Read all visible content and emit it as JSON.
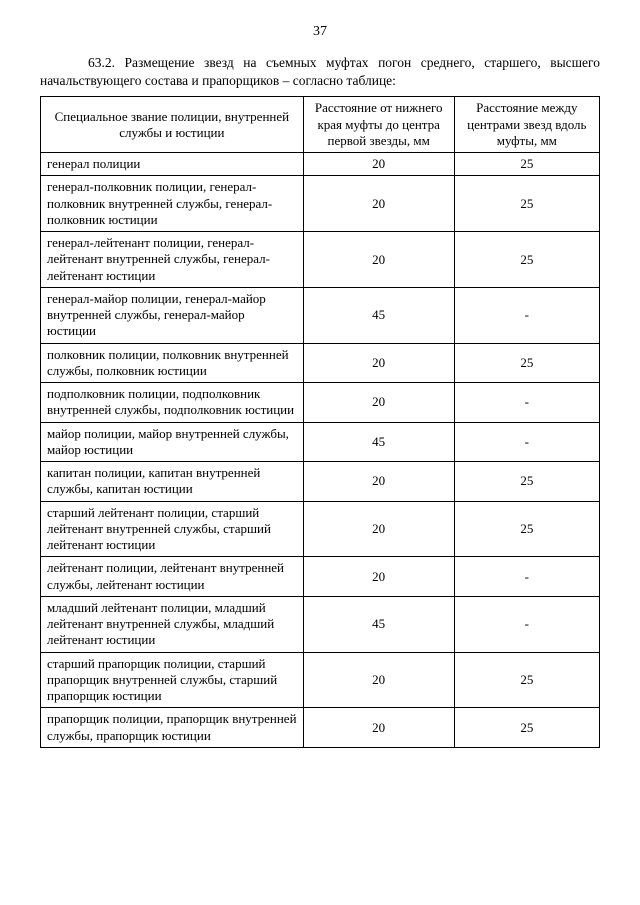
{
  "page_number": "37",
  "intro_text": "63.2. Размещение звезд на съемных муфтах погон среднего, старшего, высшего начальствующего состава и прапорщиков – согласно таблице:",
  "table": {
    "columns": [
      "Специальное звание полиции, внутренней службы и юстиции",
      "Расстояние от нижнего края муфты до центра первой звезды, мм",
      "Расстояние между центрами звезд вдоль муфты, мм"
    ],
    "rows": [
      [
        "генерал полиции",
        "20",
        "25"
      ],
      [
        "генерал-полковник полиции, генерал-полковник внутренней службы, генерал-полковник юстиции",
        "20",
        "25"
      ],
      [
        "генерал-лейтенант полиции, генерал-лейтенант внутренней службы, генерал-лейтенант юстиции",
        "20",
        "25"
      ],
      [
        "генерал-майор полиции, генерал-майор внутренней службы, генерал-майор юстиции",
        "45",
        "-"
      ],
      [
        "полковник полиции, полковник внутренней службы, полковник юстиции",
        "20",
        "25"
      ],
      [
        "подполковник полиции, подполковник внутренней службы, подполковник юстиции",
        "20",
        "-"
      ],
      [
        "майор полиции, майор внутренней службы, майор юстиции",
        "45",
        "-"
      ],
      [
        "капитан полиции, капитан внутренней службы, капитан юстиции",
        "20",
        "25"
      ],
      [
        "старший лейтенант полиции, старший лейтенант внутренней службы, старший лейтенант юстиции",
        "20",
        "25"
      ],
      [
        "лейтенант полиции, лейтенант внутренней службы, лейтенант юстиции",
        "20",
        "-"
      ],
      [
        "младший лейтенант полиции, младший лейтенант внутренней службы, младший лейтенант юстиции",
        "45",
        "-"
      ],
      [
        "старший прапорщик полиции, старший прапорщик внутренней службы, старший прапорщик юстиции",
        "20",
        "25"
      ],
      [
        "прапорщик полиции, прапорщик внутренней службы, прапорщик юстиции",
        "20",
        "25"
      ]
    ]
  }
}
